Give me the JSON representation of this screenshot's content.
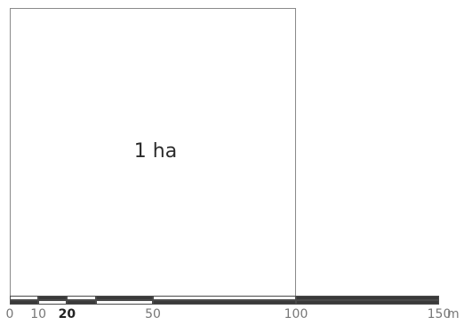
{
  "diagram": {
    "area_label": "1 ha",
    "scale_bar": {
      "unit": "m",
      "ticks": [
        {
          "value": 0,
          "label": "0"
        },
        {
          "value": 10,
          "label": "10"
        },
        {
          "value": 20,
          "label": "20"
        },
        {
          "value": 50,
          "label": "50"
        },
        {
          "value": 100,
          "label": "100"
        },
        {
          "value": 150,
          "label": "150"
        }
      ],
      "segments": [
        {
          "from": 0,
          "to": 10
        },
        {
          "from": 10,
          "to": 20
        },
        {
          "from": 20,
          "to": 30
        },
        {
          "from": 30,
          "to": 50
        },
        {
          "from": 50,
          "to": 100
        },
        {
          "from": 100,
          "to": 150
        }
      ],
      "colors": {
        "dark": "#3a3a3a",
        "light": "#ffffff",
        "outline": "#4a4a4a"
      }
    }
  }
}
